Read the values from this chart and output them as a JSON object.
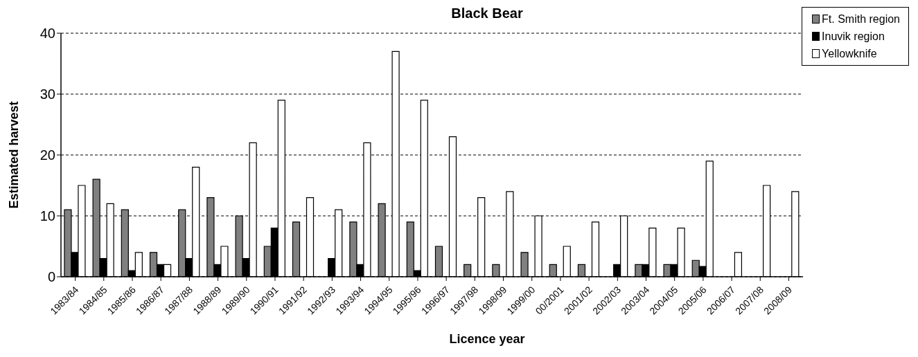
{
  "chart_data": {
    "type": "bar",
    "title": "Black Bear",
    "xlabel": "Licence year",
    "ylabel": "Estimated harvest",
    "categories": [
      "1983/84",
      "1984/85",
      "1985/86",
      "1986/87",
      "1987/88",
      "1988/89",
      "1989/90",
      "1990/91",
      "1991/92",
      "1992/93",
      "1993/94",
      "1994/95",
      "1995/96",
      "1996/97",
      "1997/98",
      "1998/99",
      "1999/00",
      "00/2001",
      "2001/02",
      "2002/03",
      "2003/04",
      "2004/05",
      "2005/06",
      "2006/07",
      "2007/08",
      "2008/09"
    ],
    "series": [
      {
        "name": "Ft. Smith region",
        "color": "#808080",
        "values": [
          11,
          16,
          11,
          4,
          11,
          13,
          10,
          5,
          9,
          0,
          9,
          12,
          9,
          5,
          2,
          2,
          4,
          2,
          2,
          0,
          2,
          2,
          2.7,
          0,
          0,
          0
        ]
      },
      {
        "name": "Inuvik region",
        "color": "#000000",
        "values": [
          4,
          3,
          1,
          2,
          3,
          2,
          3,
          8,
          0,
          3,
          2,
          0,
          1,
          0,
          0,
          0,
          0,
          0,
          0,
          2,
          2,
          2,
          1.7,
          0,
          0,
          0
        ]
      },
      {
        "name": "Yellowknife",
        "color": "#ffffff",
        "values": [
          15,
          12,
          4,
          2,
          18,
          5,
          22,
          29,
          13,
          11,
          22,
          37,
          29,
          23,
          13,
          14,
          10,
          5,
          9,
          10,
          8,
          8,
          19,
          4,
          15,
          14
        ]
      }
    ],
    "ylim": [
      0,
      40
    ],
    "yticks": [
      0,
      10,
      20,
      30,
      40
    ],
    "grid": "y",
    "legend": "top right"
  }
}
